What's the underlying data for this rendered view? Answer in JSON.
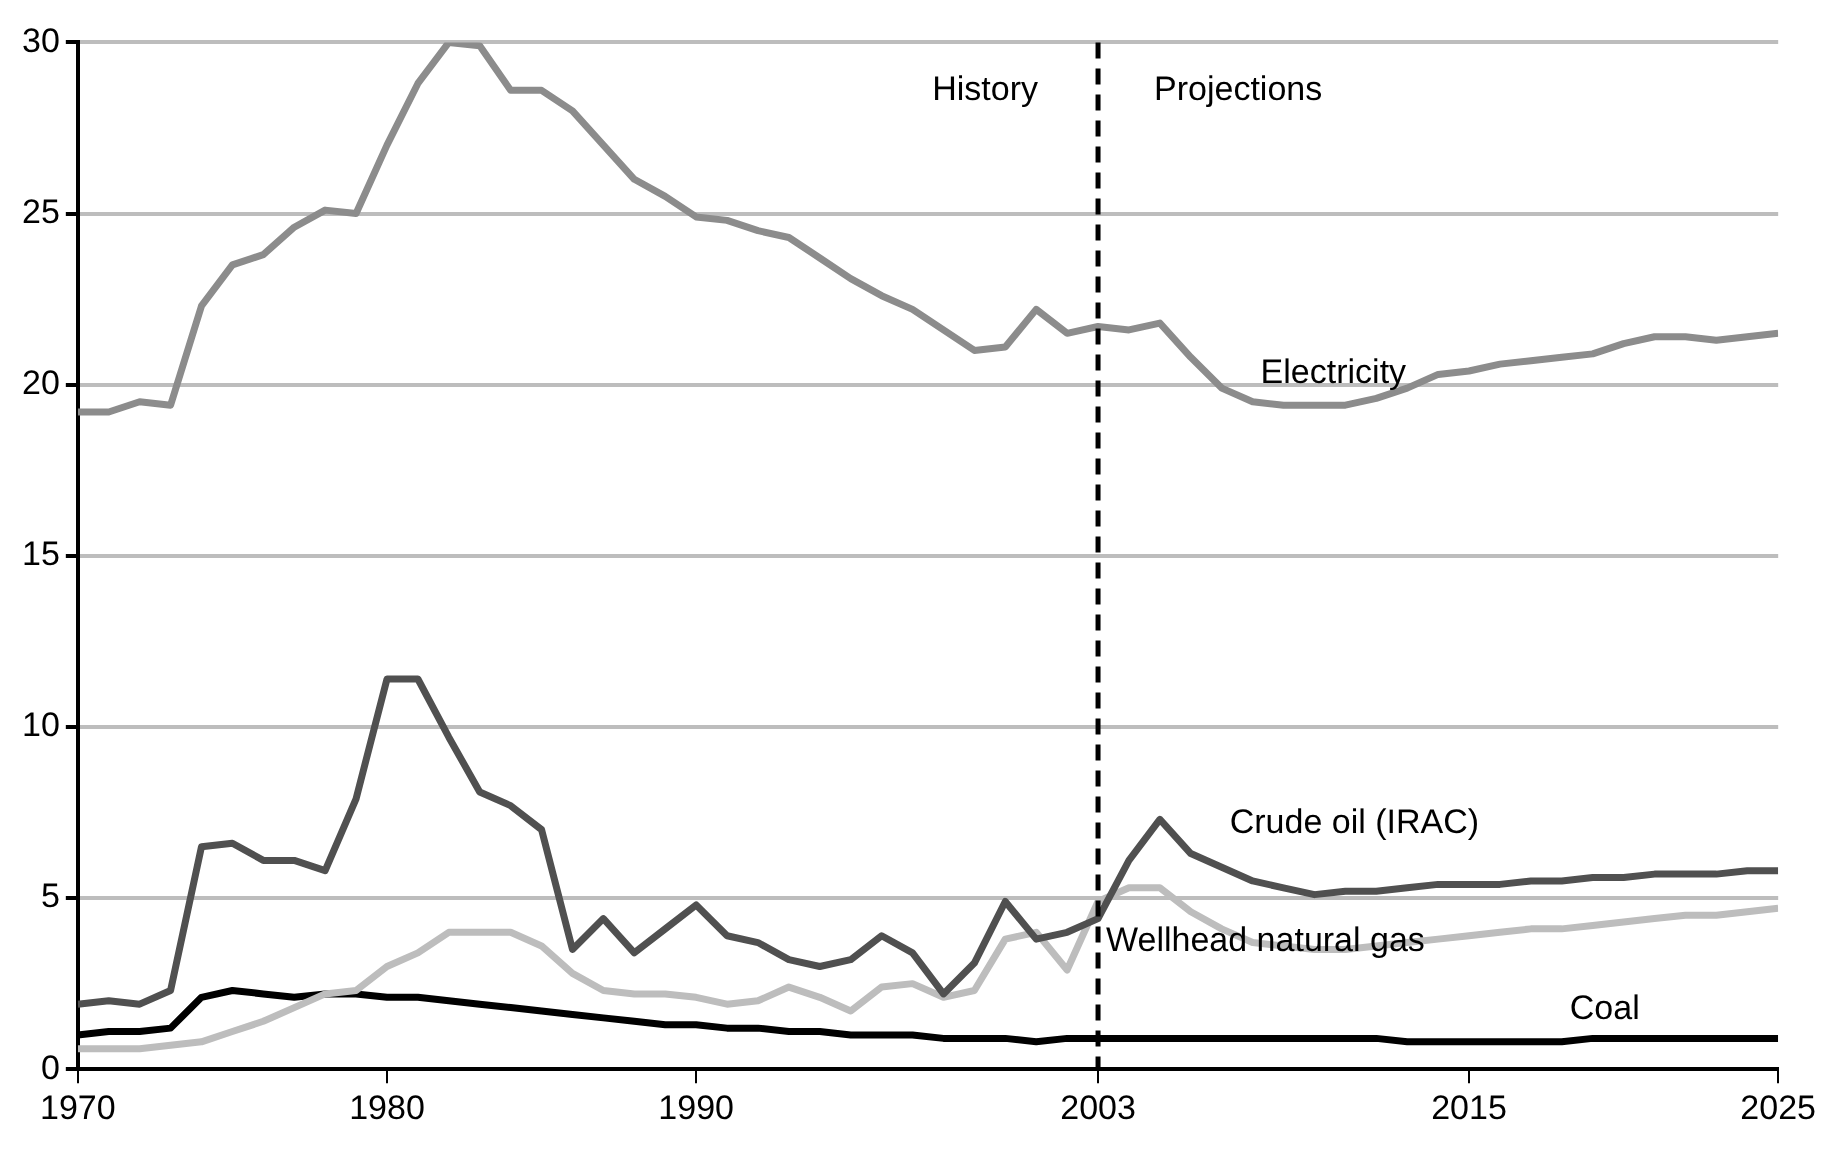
{
  "chart_data": {
    "type": "line",
    "x": [
      1970,
      1971,
      1972,
      1973,
      1974,
      1975,
      1976,
      1977,
      1978,
      1979,
      1980,
      1981,
      1982,
      1983,
      1984,
      1985,
      1986,
      1987,
      1988,
      1989,
      1990,
      1991,
      1992,
      1993,
      1994,
      1995,
      1996,
      1997,
      1998,
      1999,
      2000,
      2001,
      2002,
      2003,
      2004,
      2005,
      2006,
      2007,
      2008,
      2009,
      2010,
      2011,
      2012,
      2013,
      2014,
      2015,
      2016,
      2017,
      2018,
      2019,
      2020,
      2021,
      2022,
      2023,
      2024,
      2025
    ],
    "series": [
      {
        "name": "Electricity",
        "color": "#8c8c8c",
        "values": [
          19.2,
          19.2,
          19.5,
          19.4,
          22.3,
          23.5,
          23.8,
          24.6,
          25.1,
          25.0,
          27.0,
          28.8,
          30.0,
          29.9,
          28.6,
          28.6,
          28.0,
          27.0,
          26.0,
          25.5,
          24.9,
          24.8,
          24.5,
          24.3,
          23.7,
          23.1,
          22.6,
          22.2,
          21.6,
          21.0,
          21.1,
          22.2,
          21.5,
          21.7,
          21.6,
          21.8,
          20.8,
          19.9,
          19.5,
          19.4,
          19.4,
          19.4,
          19.6,
          19.9,
          20.3,
          20.4,
          20.6,
          20.7,
          20.8,
          20.9,
          21.2,
          21.4,
          21.4,
          21.3,
          21.4,
          21.5
        ]
      },
      {
        "name": "Crude oil (IRAC)",
        "color": "#505050",
        "values": [
          1.9,
          2.0,
          1.9,
          2.3,
          6.5,
          6.6,
          6.1,
          6.1,
          5.8,
          7.9,
          11.4,
          11.4,
          9.7,
          8.1,
          7.7,
          7.0,
          3.5,
          4.4,
          3.4,
          4.1,
          4.8,
          3.9,
          3.7,
          3.2,
          3.0,
          3.2,
          3.9,
          3.4,
          2.2,
          3.1,
          4.9,
          3.8,
          4.0,
          4.4,
          6.1,
          7.3,
          6.3,
          5.9,
          5.5,
          5.3,
          5.1,
          5.2,
          5.2,
          5.3,
          5.4,
          5.4,
          5.4,
          5.5,
          5.5,
          5.6,
          5.6,
          5.7,
          5.7,
          5.7,
          5.8,
          5.8
        ]
      },
      {
        "name": "Wellhead natural gas",
        "color": "#bdbdbd",
        "values": [
          0.6,
          0.6,
          0.6,
          0.7,
          0.8,
          1.1,
          1.4,
          1.8,
          2.2,
          2.3,
          3.0,
          3.4,
          4.0,
          4.0,
          4.0,
          3.6,
          2.8,
          2.3,
          2.2,
          2.2,
          2.1,
          1.9,
          2.0,
          2.4,
          2.1,
          1.7,
          2.4,
          2.5,
          2.1,
          2.3,
          3.8,
          4.0,
          2.9,
          4.9,
          5.3,
          5.3,
          4.6,
          4.1,
          3.7,
          3.6,
          3.5,
          3.5,
          3.6,
          3.7,
          3.8,
          3.9,
          4.0,
          4.1,
          4.1,
          4.2,
          4.3,
          4.4,
          4.5,
          4.5,
          4.6,
          4.7
        ]
      },
      {
        "name": "Coal",
        "color": "#000000",
        "values": [
          1.0,
          1.1,
          1.1,
          1.2,
          2.1,
          2.3,
          2.2,
          2.1,
          2.2,
          2.2,
          2.1,
          2.1,
          2.0,
          1.9,
          1.8,
          1.7,
          1.6,
          1.5,
          1.4,
          1.3,
          1.3,
          1.2,
          1.2,
          1.1,
          1.1,
          1.0,
          1.0,
          1.0,
          0.9,
          0.9,
          0.9,
          0.8,
          0.9,
          0.9,
          0.9,
          0.9,
          0.9,
          0.9,
          0.9,
          0.9,
          0.9,
          0.9,
          0.9,
          0.8,
          0.8,
          0.8,
          0.8,
          0.8,
          0.8,
          0.9,
          0.9,
          0.9,
          0.9,
          0.9,
          0.9,
          0.9
        ]
      }
    ],
    "xlim": [
      1970,
      2025
    ],
    "xticks": [
      1970,
      1980,
      1990,
      2003,
      2015,
      2025
    ],
    "ylim": [
      0,
      30
    ],
    "yticks": [
      0,
      5,
      10,
      15,
      20,
      25,
      30
    ],
    "grid": "y",
    "legend": false,
    "marker": "none",
    "line_style": "solid",
    "ref_lines": [
      {
        "axis": "x",
        "value": 2003,
        "color": "#000000",
        "line_style": "dashed"
      }
    ],
    "annotations": [
      "History",
      "Projections"
    ]
  }
}
